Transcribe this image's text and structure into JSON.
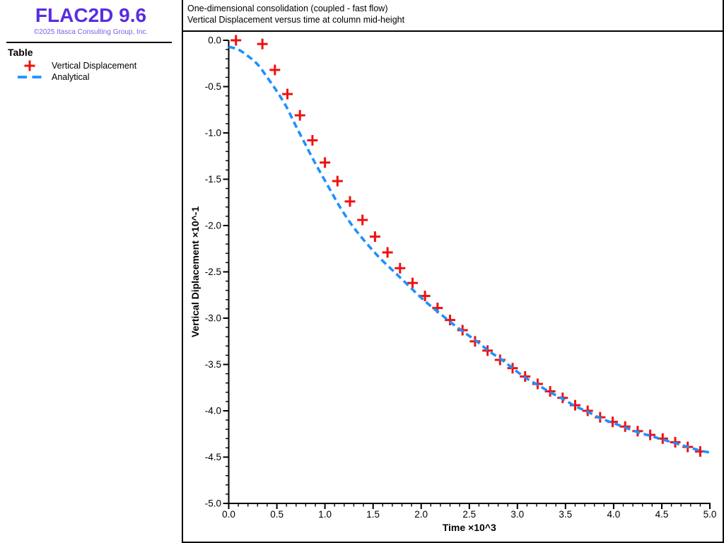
{
  "window": {
    "app": "FLAC2D",
    "version": "9.6"
  },
  "colors": {
    "logo": "#5a2de0",
    "copyright": "#7d5ce6",
    "marker_red": "#ee1111",
    "analytical_blue": "#1e90ff",
    "axis": "#000000",
    "background": "#ffffff"
  },
  "sidebar": {
    "logo_title": "FLAC2D 9.6",
    "logo_copyright": "©2025 Itasca Consulting Group, Inc.",
    "section_title": "Table",
    "legend": [
      {
        "label": "Vertical Displacement",
        "marker": "plus",
        "color": "#ee1111"
      },
      {
        "label": "Analytical",
        "marker": "dashed-line",
        "color": "#1e90ff"
      }
    ]
  },
  "header": {
    "line1": "One-dimensional consolidation (coupled - fast flow)",
    "line2": "Vertical Displacement versus time at column mid-height"
  },
  "chart_data": {
    "type": "scatter",
    "title_lines": [
      "One-dimensional consolidation (coupled - fast flow)",
      "Vertical Displacement versus time at column mid-height"
    ],
    "xlabel": "Time ×10^3",
    "ylabel": "Vertical Diplacement ×10^-1",
    "xlim": [
      0.0,
      5.0
    ],
    "ylim": [
      -5.0,
      0.0
    ],
    "x_major_ticks": [
      0.0,
      0.5,
      1.0,
      1.5,
      2.0,
      2.5,
      3.0,
      3.5,
      4.0,
      4.5,
      5.0
    ],
    "x_tick_labels": [
      "0.0",
      "0.5",
      "1.0",
      "1.5",
      "2.0",
      "2.5",
      "3.0",
      "3.5",
      "4.0",
      "4.5",
      "5.0"
    ],
    "y_major_ticks": [
      0.0,
      -0.5,
      -1.0,
      -1.5,
      -2.0,
      -2.5,
      -3.0,
      -3.5,
      -4.0,
      -4.5,
      -5.0
    ],
    "y_tick_labels": [
      "0.0",
      "-0.5",
      "-1.0",
      "-1.5",
      "-2.0",
      "-2.5",
      "-3.0",
      "-3.5",
      "-4.0",
      "-4.5",
      "-5.0"
    ],
    "x_minor_step": 0.1,
    "y_minor_step": 0.1,
    "grid": false,
    "legend_position": "left-panel",
    "series": [
      {
        "name": "Vertical Displacement",
        "type": "scatter",
        "marker": "plus",
        "color": "#ee1111",
        "points": [
          [
            0.075,
            0.0
          ],
          [
            0.35,
            -0.04
          ],
          [
            0.48,
            -0.32
          ],
          [
            0.61,
            -0.58
          ],
          [
            0.74,
            -0.81
          ],
          [
            0.87,
            -1.08
          ],
          [
            1.0,
            -1.32
          ],
          [
            1.13,
            -1.52
          ],
          [
            1.26,
            -1.74
          ],
          [
            1.39,
            -1.94
          ],
          [
            1.52,
            -2.12
          ],
          [
            1.65,
            -2.29
          ],
          [
            1.78,
            -2.46
          ],
          [
            1.91,
            -2.62
          ],
          [
            2.04,
            -2.76
          ],
          [
            2.17,
            -2.89
          ],
          [
            2.3,
            -3.02
          ],
          [
            2.43,
            -3.13
          ],
          [
            2.56,
            -3.25
          ],
          [
            2.69,
            -3.35
          ],
          [
            2.82,
            -3.45
          ],
          [
            2.95,
            -3.54
          ],
          [
            3.08,
            -3.63
          ],
          [
            3.21,
            -3.71
          ],
          [
            3.34,
            -3.79
          ],
          [
            3.47,
            -3.86
          ],
          [
            3.6,
            -3.94
          ],
          [
            3.73,
            -4.0
          ],
          [
            3.86,
            -4.07
          ],
          [
            3.99,
            -4.12
          ],
          [
            4.12,
            -4.17
          ],
          [
            4.25,
            -4.22
          ],
          [
            4.38,
            -4.26
          ],
          [
            4.51,
            -4.3
          ],
          [
            4.64,
            -4.34
          ],
          [
            4.77,
            -4.39
          ],
          [
            4.9,
            -4.44
          ]
        ]
      },
      {
        "name": "Analytical",
        "type": "line",
        "line_style": "dashed",
        "color": "#1e90ff",
        "points": [
          [
            0.0,
            -0.07
          ],
          [
            0.1,
            -0.1
          ],
          [
            0.2,
            -0.17
          ],
          [
            0.3,
            -0.26
          ],
          [
            0.4,
            -0.4
          ],
          [
            0.5,
            -0.55
          ],
          [
            0.6,
            -0.72
          ],
          [
            0.7,
            -0.93
          ],
          [
            0.8,
            -1.13
          ],
          [
            0.9,
            -1.33
          ],
          [
            1.03,
            -1.57
          ],
          [
            1.15,
            -1.79
          ],
          [
            1.27,
            -1.98
          ],
          [
            1.39,
            -2.14
          ],
          [
            1.56,
            -2.34
          ],
          [
            1.74,
            -2.52
          ],
          [
            1.86,
            -2.64
          ],
          [
            1.98,
            -2.76
          ],
          [
            2.1,
            -2.87
          ],
          [
            2.22,
            -2.97
          ],
          [
            2.35,
            -3.08
          ],
          [
            2.47,
            -3.17
          ],
          [
            2.59,
            -3.26
          ],
          [
            2.71,
            -3.36
          ],
          [
            2.84,
            -3.45
          ],
          [
            2.95,
            -3.54
          ],
          [
            3.08,
            -3.64
          ],
          [
            3.21,
            -3.72
          ],
          [
            3.34,
            -3.8
          ],
          [
            3.47,
            -3.87
          ],
          [
            3.6,
            -3.95
          ],
          [
            3.73,
            -4.01
          ],
          [
            3.86,
            -4.08
          ],
          [
            3.99,
            -4.13
          ],
          [
            4.12,
            -4.18
          ],
          [
            4.25,
            -4.23
          ],
          [
            4.38,
            -4.27
          ],
          [
            4.51,
            -4.31
          ],
          [
            4.64,
            -4.35
          ],
          [
            4.77,
            -4.39
          ],
          [
            4.9,
            -4.43
          ],
          [
            5.0,
            -4.45
          ]
        ]
      }
    ]
  }
}
